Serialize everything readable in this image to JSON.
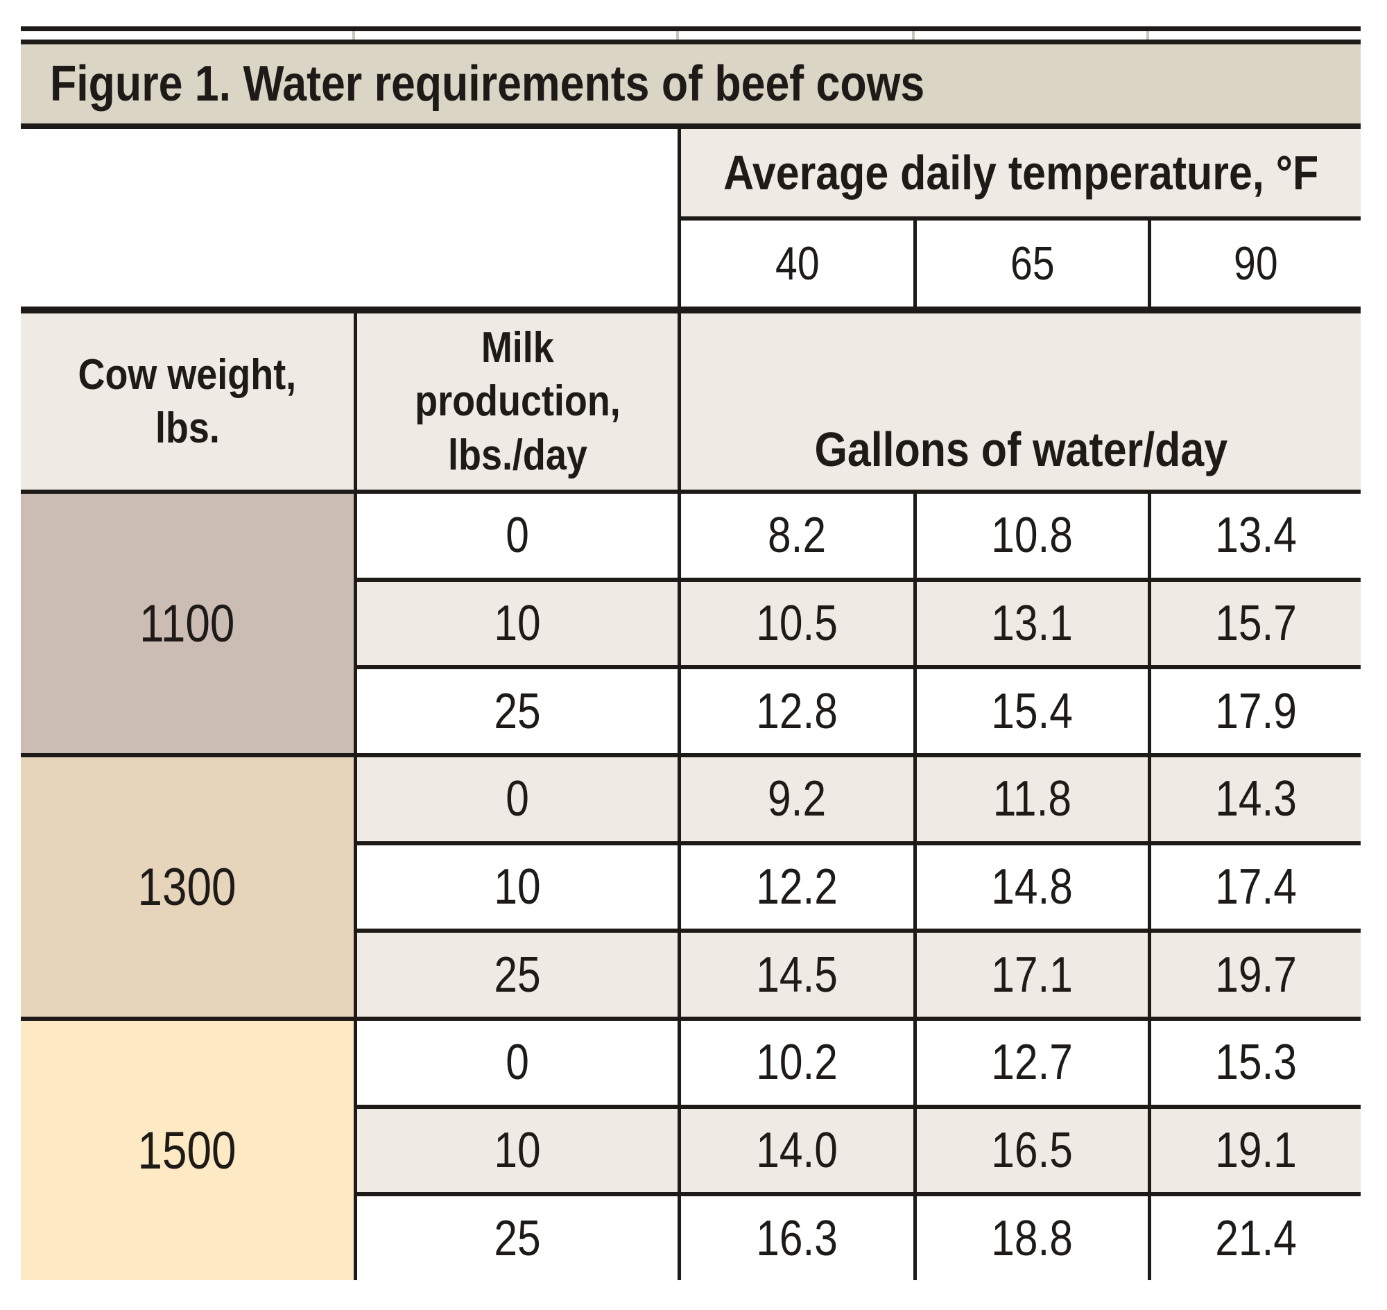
{
  "figure": {
    "title": "Figure 1. Water requirements of beef cows"
  },
  "table": {
    "temp_group_header": "Average daily temperature, °F",
    "temp_columns": [
      "40",
      "65",
      "90"
    ],
    "cow_weight_header": {
      "line1": "Cow weight,",
      "line2": "lbs."
    },
    "milk_header": {
      "line1": "Milk",
      "line2": "production,",
      "line3": "lbs./day"
    },
    "gallons_header": "Gallons of water/day",
    "blocks": [
      {
        "weight": "1100",
        "rows": [
          {
            "milk": "0",
            "values": [
              "8.2",
              "10.8",
              "13.4"
            ]
          },
          {
            "milk": "10",
            "values": [
              "10.5",
              "13.1",
              "15.7"
            ]
          },
          {
            "milk": "25",
            "values": [
              "12.8",
              "15.4",
              "17.9"
            ]
          }
        ]
      },
      {
        "weight": "1300",
        "rows": [
          {
            "milk": "0",
            "values": [
              "9.2",
              "11.8",
              "14.3"
            ]
          },
          {
            "milk": "10",
            "values": [
              "12.2",
              "14.8",
              "17.4"
            ]
          },
          {
            "milk": "25",
            "values": [
              "14.5",
              "17.1",
              "19.7"
            ]
          }
        ]
      },
      {
        "weight": "1500",
        "rows": [
          {
            "milk": "0",
            "values": [
              "10.2",
              "12.7",
              "15.3"
            ]
          },
          {
            "milk": "10",
            "values": [
              "14.0",
              "16.5",
              "19.1"
            ]
          },
          {
            "milk": "25",
            "values": [
              "16.3",
              "18.8",
              "21.4"
            ]
          }
        ]
      }
    ]
  },
  "colors": {
    "title_bar": "#dbd5c6",
    "header_bg": "#efeae3",
    "row_alt_bg": "#efeae3",
    "row_bg": "#ffffff",
    "weight_1100": "#cbbcb4",
    "weight_1300": "#e6d4bb",
    "weight_1500": "#fdeac5",
    "border": "#1d1a17"
  },
  "chart_data": {
    "type": "table",
    "title": "Figure 1. Water requirements of beef cows",
    "column_group_header": "Average daily temperature, °F",
    "columns": [
      "Cow weight, lbs.",
      "Milk production, lbs./day",
      "40",
      "65",
      "90"
    ],
    "value_unit": "Gallons of water/day",
    "rows": [
      [
        1100,
        0,
        8.2,
        10.8,
        13.4
      ],
      [
        1100,
        10,
        10.5,
        13.1,
        15.7
      ],
      [
        1100,
        25,
        12.8,
        15.4,
        17.9
      ],
      [
        1300,
        0,
        9.2,
        11.8,
        14.3
      ],
      [
        1300,
        10,
        12.2,
        14.8,
        17.4
      ],
      [
        1300,
        25,
        14.5,
        17.1,
        19.7
      ],
      [
        1500,
        0,
        10.2,
        12.7,
        15.3
      ],
      [
        1500,
        10,
        14.0,
        16.5,
        19.1
      ],
      [
        1500,
        25,
        16.3,
        18.8,
        21.4
      ]
    ]
  }
}
